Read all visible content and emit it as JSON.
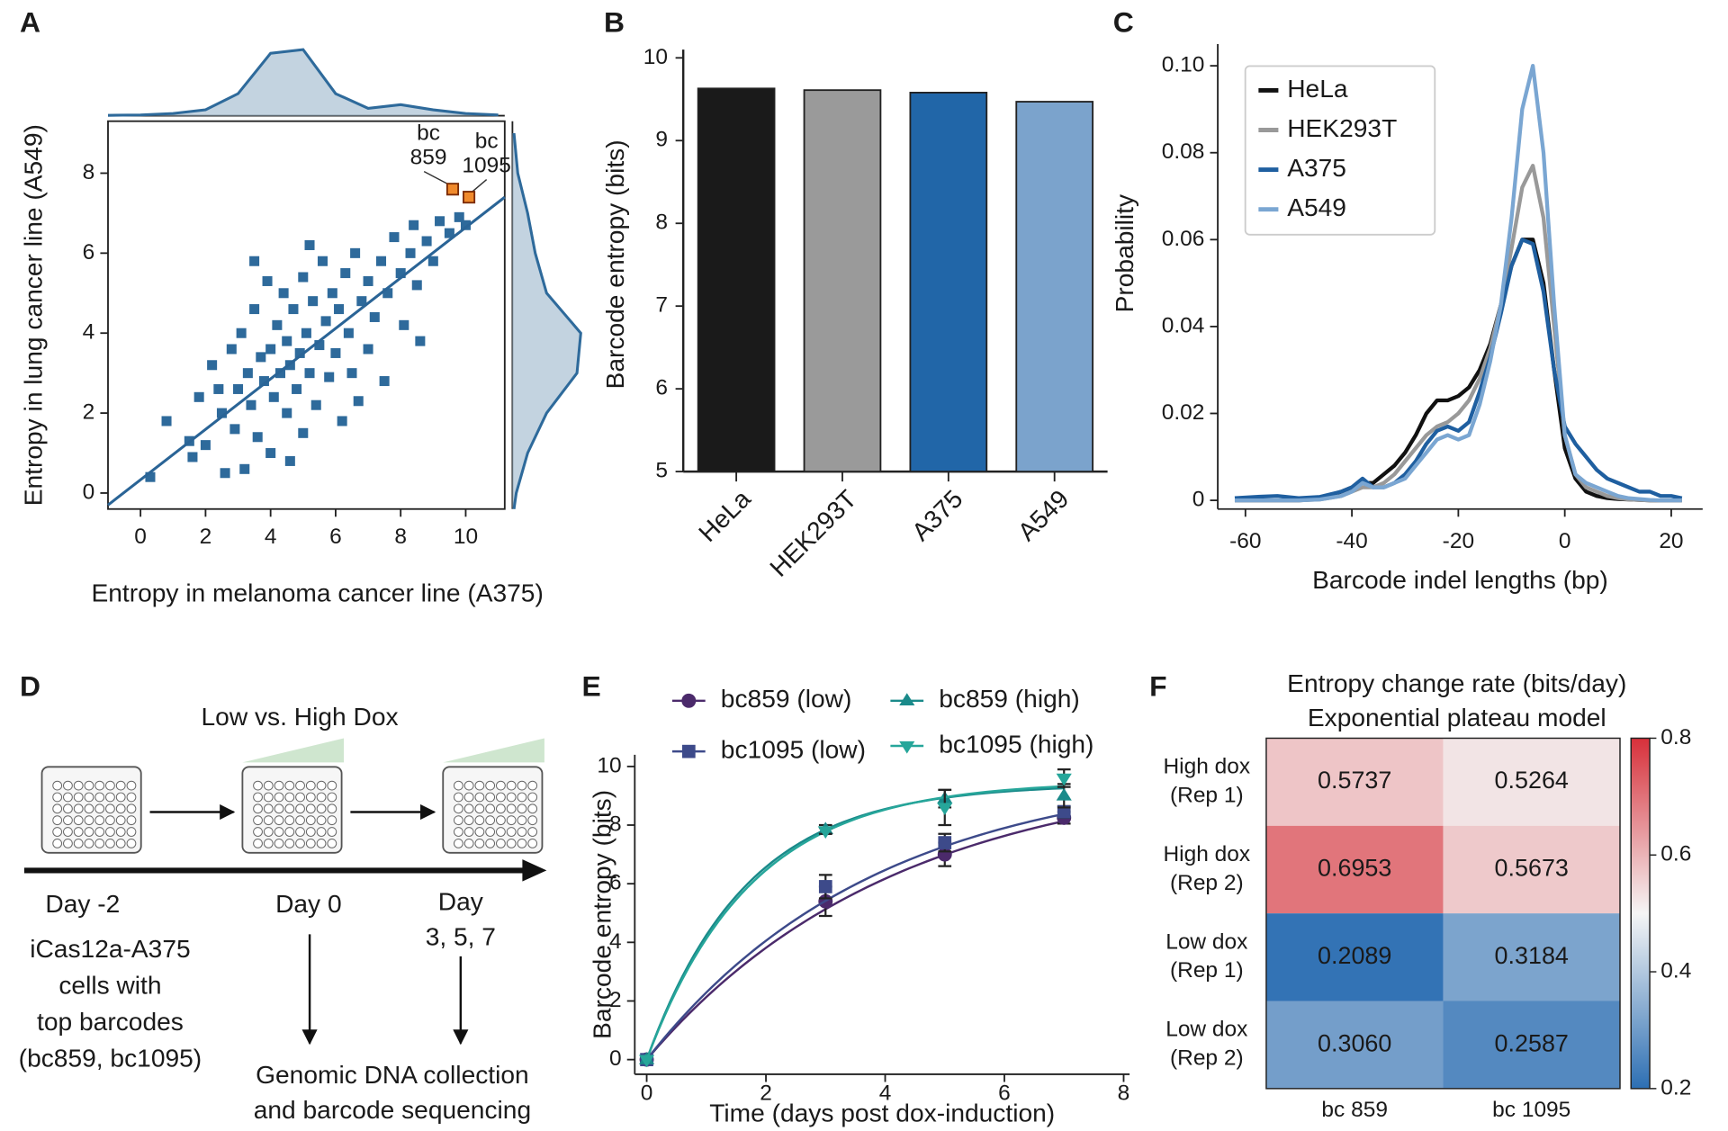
{
  "chart_data": [
    {
      "type": "scatter",
      "panel": "A",
      "x_label": "Entropy in melanoma cancer line (A375)",
      "y_label": "Entropy in lung cancer line (A549)",
      "xlim": [
        -1,
        11.2
      ],
      "ylim": [
        -0.4,
        9.3
      ],
      "xticks": [
        0,
        2,
        4,
        6,
        8,
        10
      ],
      "yticks": [
        0,
        2,
        4,
        6,
        8
      ],
      "color": "#2e6a9b",
      "x": [
        0.3,
        0.8,
        1.5,
        1.6,
        1.8,
        2.0,
        2.2,
        2.5,
        2.6,
        2.8,
        2.9,
        3.0,
        3.1,
        3.2,
        3.3,
        3.4,
        3.5,
        3.6,
        3.7,
        3.8,
        3.9,
        4.0,
        4.0,
        4.1,
        4.2,
        4.3,
        4.4,
        4.5,
        4.5,
        4.6,
        4.7,
        4.8,
        4.9,
        5.0,
        5.0,
        5.1,
        5.2,
        5.3,
        5.4,
        5.5,
        5.6,
        5.7,
        5.8,
        5.9,
        6.0,
        6.1,
        6.2,
        6.3,
        6.4,
        6.5,
        6.6,
        6.8,
        7.0,
        7.0,
        7.2,
        7.4,
        7.5,
        7.6,
        7.8,
        8.0,
        8.1,
        8.3,
        8.4,
        8.5,
        8.6,
        8.8,
        9.0,
        9.2,
        9.5,
        9.8,
        10.0,
        4.6,
        3.5,
        5.2,
        2.4,
        6.7
      ],
      "values": [
        0.4,
        1.8,
        1.3,
        0.9,
        2.4,
        1.2,
        3.2,
        2.0,
        0.5,
        3.6,
        1.6,
        2.6,
        4.0,
        0.6,
        3.0,
        2.2,
        4.6,
        1.4,
        3.4,
        2.8,
        5.3,
        3.6,
        1.0,
        2.4,
        4.2,
        3.0,
        5.0,
        3.8,
        2.0,
        3.2,
        4.6,
        2.6,
        3.5,
        5.4,
        1.5,
        4.0,
        3.0,
        4.8,
        2.2,
        3.7,
        5.8,
        4.3,
        2.9,
        5.0,
        3.5,
        4.6,
        1.8,
        5.5,
        4.0,
        3.0,
        6.0,
        4.8,
        5.3,
        3.6,
        4.4,
        5.8,
        2.8,
        5.0,
        6.4,
        5.5,
        4.2,
        6.0,
        6.7,
        5.2,
        3.8,
        6.3,
        5.8,
        6.8,
        6.5,
        6.9,
        6.7,
        0.8,
        5.8,
        6.2,
        2.6,
        2.3
      ],
      "fit": {
        "x": [
          -1,
          11.2
        ],
        "y": [
          -0.3,
          7.4
        ],
        "color": "#2a6496"
      },
      "highlights": [
        {
          "label": [
            "bc",
            "859"
          ],
          "x": 9.6,
          "y": 7.6,
          "color": "#f08a2c"
        },
        {
          "label": [
            "bc",
            "1095"
          ],
          "x": 10.1,
          "y": 7.4,
          "color": "#f08a2c"
        }
      ],
      "x_density": {
        "x": [
          -1,
          0,
          1,
          2,
          3,
          4,
          5,
          6,
          7,
          8,
          9,
          10,
          11
        ],
        "values": [
          0.005,
          0.01,
          0.03,
          0.08,
          0.3,
          0.85,
          0.9,
          0.3,
          0.1,
          0.15,
          0.08,
          0.03,
          0.01
        ]
      },
      "y_density": {
        "y": [
          -0.4,
          0,
          1,
          2,
          3,
          4,
          5,
          6,
          7,
          8,
          9
        ],
        "values": [
          0.02,
          0.05,
          0.2,
          0.45,
          0.85,
          0.9,
          0.45,
          0.3,
          0.2,
          0.07,
          0.02
        ]
      }
    },
    {
      "type": "bar",
      "panel": "B",
      "y_label": "Barcode entropy (bits)",
      "categories": [
        "HeLa",
        "HEK293T",
        "A375",
        "A549"
      ],
      "values": [
        9.63,
        9.61,
        9.58,
        9.47
      ],
      "colors": [
        "#1a1a1a",
        "#9a9a9a",
        "#2166a8",
        "#7ba3cc"
      ],
      "ylim": [
        5,
        10.1
      ],
      "yticks": [
        5,
        6,
        7,
        8,
        9,
        10
      ]
    },
    {
      "type": "line",
      "panel": "C",
      "x_label": "Barcode indel lengths (bp)",
      "y_label": "Probability",
      "xlim": [
        -65.2,
        25.9
      ],
      "ylim": [
        -0.002,
        0.105
      ],
      "xticks": [
        -60,
        -40,
        -20,
        0,
        20
      ],
      "yticks": [
        0,
        0.02,
        0.04,
        0.06,
        0.08,
        {
          "value": 0.1,
          "label": "0.10"
        }
      ],
      "x": [
        -62,
        -58,
        -54,
        -50,
        -46,
        -42,
        -40,
        -38,
        -36,
        -34,
        -32,
        -30,
        -28,
        -26,
        -24,
        -22,
        -20,
        -18,
        -16,
        -14,
        -12,
        -10,
        -8,
        -6,
        -4,
        -2,
        0,
        2,
        4,
        6,
        8,
        10,
        12,
        14,
        16,
        18,
        20,
        22
      ],
      "series": [
        {
          "name": "HeLa",
          "color": "#111111",
          "values": [
            0,
            0,
            0,
            0,
            0.0003,
            0.002,
            0.003,
            0.004,
            0.004,
            0.006,
            0.008,
            0.011,
            0.015,
            0.02,
            0.023,
            0.023,
            0.024,
            0.026,
            0.03,
            0.036,
            0.045,
            0.054,
            0.06,
            0.06,
            0.05,
            0.03,
            0.012,
            0.005,
            0.002,
            0.001,
            0.0005,
            0.0003,
            0.0002,
            0.0001,
            0,
            0,
            0,
            0
          ]
        },
        {
          "name": "HEK293T",
          "color": "#999999",
          "values": [
            0,
            0,
            0,
            0,
            0.0002,
            0.001,
            0.002,
            0.003,
            0.003,
            0.004,
            0.006,
            0.009,
            0.012,
            0.015,
            0.017,
            0.018,
            0.02,
            0.023,
            0.028,
            0.035,
            0.045,
            0.058,
            0.072,
            0.077,
            0.065,
            0.04,
            0.015,
            0.006,
            0.003,
            0.002,
            0.001,
            0.0005,
            0.0002,
            0.0001,
            0,
            0,
            0,
            0
          ]
        },
        {
          "name": "A375",
          "color": "#1f5fa0",
          "values": [
            0.0005,
            0.0008,
            0.001,
            0.0005,
            0.0008,
            0.002,
            0.003,
            0.005,
            0.003,
            0.003,
            0.004,
            0.006,
            0.009,
            0.013,
            0.016,
            0.017,
            0.016,
            0.018,
            0.025,
            0.033,
            0.043,
            0.054,
            0.06,
            0.059,
            0.048,
            0.03,
            0.017,
            0.013,
            0.01,
            0.007,
            0.005,
            0.004,
            0.003,
            0.002,
            0.002,
            0.001,
            0.001,
            0.0005
          ]
        },
        {
          "name": "A549",
          "color": "#7aa6d2",
          "values": [
            0,
            0,
            0,
            0,
            0.0002,
            0.001,
            0.002,
            0.004,
            0.003,
            0.003,
            0.004,
            0.005,
            0.008,
            0.011,
            0.014,
            0.015,
            0.014,
            0.015,
            0.022,
            0.032,
            0.045,
            0.065,
            0.09,
            0.1,
            0.08,
            0.045,
            0.015,
            0.006,
            0.004,
            0.003,
            0.002,
            0.001,
            0.0005,
            0.0003,
            0.0001,
            0,
            0,
            0
          ]
        }
      ]
    },
    {
      "type": "line",
      "panel": "E",
      "x_label": "Time (days post dox-induction)",
      "y_label": "Barcode entropy (bits)",
      "xlim": [
        -0.2,
        8.1
      ],
      "ylim": [
        -0.5,
        10.4
      ],
      "xticks": [
        0,
        2,
        4,
        6,
        8
      ],
      "yticks": [
        0,
        2,
        4,
        6,
        8,
        10
      ],
      "x": [
        0,
        3,
        5,
        7
      ],
      "series": [
        {
          "name": "bc859 (low)",
          "color": "#4b2a6b",
          "marker": "circle",
          "values": [
            0,
            5.4,
            7.0,
            8.25
          ],
          "errors": [
            0,
            0.5,
            0.4,
            0.2
          ],
          "fit": {
            "plateau": 10,
            "rate": 0.24
          }
        },
        {
          "name": "bc1095 (low)",
          "color": "#3d4a8a",
          "marker": "square",
          "values": [
            0,
            5.9,
            7.4,
            8.45
          ],
          "errors": [
            0,
            0.4,
            0.3,
            0.2
          ],
          "fit": {
            "plateau": 10,
            "rate": 0.26
          }
        },
        {
          "name": "bc859 (high)",
          "color": "#1a8a8a",
          "marker": "triangle-up",
          "values": [
            0,
            7.85,
            8.9,
            9.0
          ],
          "errors": [
            0,
            0.15,
            0.3,
            0.4
          ],
          "fit": {
            "plateau": 9.4,
            "rate": 0.6
          }
        },
        {
          "name": "bc1095 (high)",
          "color": "#26a69a",
          "marker": "triangle-down",
          "values": [
            0,
            7.8,
            8.6,
            9.6
          ],
          "errors": [
            0,
            0.1,
            0.6,
            0.3
          ],
          "fit": {
            "plateau": 9.5,
            "rate": 0.57
          }
        }
      ]
    },
    {
      "type": "heatmap",
      "panel": "F",
      "title": [
        "Entropy change rate (bits/day)",
        "Exponential plateau model"
      ],
      "rows": [
        [
          "High dox",
          "(Rep 1)"
        ],
        [
          "High dox",
          "(Rep 2)"
        ],
        [
          "Low dox",
          "(Rep 1)"
        ],
        [
          "Low dox",
          "(Rep 2)"
        ]
      ],
      "columns": [
        "bc 859",
        "bc 1095"
      ],
      "values": [
        [
          0.5737,
          0.5264
        ],
        [
          0.6953,
          0.5673
        ],
        [
          0.2089,
          0.3184
        ],
        [
          0.306,
          0.2587
        ]
      ],
      "value_labels": [
        [
          "0.5737",
          "0.5264"
        ],
        [
          "0.6953",
          "0.5673"
        ],
        [
          "0.2089",
          "0.3184"
        ],
        [
          "0.3060",
          "0.2587"
        ]
      ],
      "clim": [
        0.2,
        0.8
      ],
      "colors": [
        "#2d6fb3",
        "#f5f5f5",
        "#d7303a"
      ],
      "colorbar_ticks": [
        0.2,
        0.4,
        0.6,
        0.8
      ]
    }
  ],
  "diagram": {
    "panel": "D",
    "title": "Low vs. High Dox",
    "timepoints": [
      [
        "Day -2"
      ],
      [
        "Day 0"
      ],
      [
        "Day",
        "3, 5, 7"
      ]
    ],
    "cells": [
      "iCas12a-A375",
      "cells with",
      "top barcodes",
      "(bc859, bc1095)"
    ],
    "output": [
      "Genomic DNA collection",
      "and barcode sequencing"
    ]
  }
}
